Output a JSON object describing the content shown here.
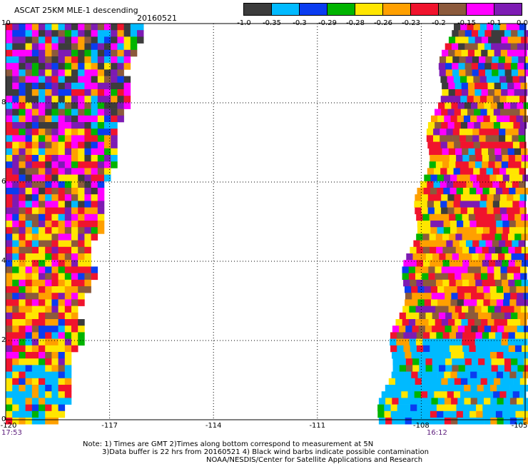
{
  "header": {
    "title": "ASCAT 25KM MLE-1 descending",
    "date": "20160521"
  },
  "colorbar": {
    "colors": [
      "#3c3c3c",
      "#00baff",
      "#0a3cf0",
      "#00b400",
      "#ffe600",
      "#ffa000",
      "#f0142d",
      "#8c5a3c",
      "#ff00ff",
      "#7d1bb3"
    ],
    "labels": [
      "-1.0",
      "-0.35",
      "-0.3",
      "-0.29",
      "-0.28",
      "-0.26",
      "-0.23",
      "-0.2",
      "-0.15",
      "-0.1",
      "0.0"
    ]
  },
  "axes": {
    "y_ticks": [
      "0",
      "2",
      "4",
      "6",
      "8",
      "10"
    ],
    "x_ticks": [
      "-120",
      "-117",
      "-114",
      "-111",
      "-108",
      "-105"
    ],
    "lat_range": [
      0,
      10
    ],
    "lon_range": [
      -120,
      -105
    ],
    "grid": "dotted"
  },
  "swath_times": {
    "left": "17:53",
    "right": "16:12"
  },
  "notes": {
    "line1": "Note: 1) Times are GMT 2)Times along bottom correspond to measurement at 5N",
    "line2": "3)Data buffer is 22 hrs from 20160521 4) Black wind barbs indicate possible contamination",
    "line3": "NOAA/NESDIS/Center for Satellite Applications and Research"
  }
}
